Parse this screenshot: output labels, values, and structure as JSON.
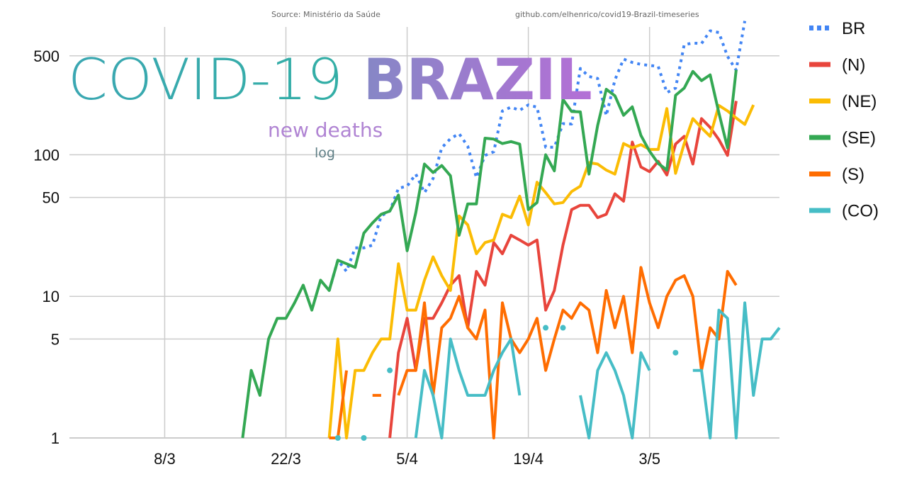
{
  "header": {
    "source": "Source: Ministério da Saúde",
    "repo": "github.com/elhenrico/covid19-Brazil-timeseries"
  },
  "title": {
    "part1": "COVID-19",
    "part2": "BRAZIL",
    "subtitle": "new deaths",
    "scale_note": "log"
  },
  "colors": {
    "title_gradient_start": "#3ba7b2",
    "title_gradient_mid": "#2bb59a",
    "title_bold_start": "#4aa6b1",
    "title_bold_end": "#b46fd6",
    "grid": "#cccccc"
  },
  "chart_data": {
    "type": "line",
    "yscale": "log",
    "ylim": [
      1,
      800
    ],
    "yticks": [
      1,
      5,
      10,
      50,
      100,
      500
    ],
    "ytick_labels": [
      "1",
      "5",
      "10",
      "50",
      "100",
      "500"
    ],
    "x_start": "2020-02-26",
    "x_end": "2020-05-18",
    "xticks": [
      "2020-03-08",
      "2020-03-22",
      "2020-04-05",
      "2020-04-19",
      "2020-05-03"
    ],
    "xtick_labels": [
      "8/3",
      "22/3",
      "5/4",
      "19/4",
      "3/5"
    ],
    "grid": true,
    "legend_position": "right",
    "series": [
      {
        "name": "BR",
        "color": "#4285f4",
        "dash": true,
        "start": "2020-03-27",
        "values": [
          11,
          18,
          15,
          22,
          22,
          23,
          37,
          40,
          58,
          60,
          73,
          54,
          68,
          112,
          130,
          141,
          115,
          69,
          99,
          105,
          204,
          217,
          206,
          225,
          217,
          113,
          113,
          166,
          165,
          407,
          357,
          346,
          189,
          338,
          474,
          449,
          435,
          428,
          421,
          275,
          296,
          600,
          615,
          610,
          751,
          730,
          496,
          396,
          881
        ]
      },
      {
        "name": "(N)",
        "color": "#e8453c",
        "dash": false,
        "start": "2020-04-03",
        "values": [
          1,
          4,
          7,
          3,
          7,
          7,
          9,
          12,
          14,
          6,
          15,
          12,
          24,
          20,
          27,
          25,
          23,
          25,
          8,
          11,
          23,
          41,
          44,
          44,
          36,
          38,
          53,
          47,
          123,
          82,
          76,
          90,
          72,
          119,
          135,
          86,
          180,
          156,
          128,
          99,
          240
        ]
      },
      {
        "name": "(NE)",
        "color": "#fbbc04",
        "dash": false,
        "start": "2020-03-27",
        "values": [
          1,
          5,
          1,
          3,
          3,
          4,
          5,
          5,
          17,
          8,
          8,
          13,
          19,
          14,
          11,
          37,
          32,
          20,
          24,
          25,
          38,
          36,
          51,
          32,
          64,
          54,
          45,
          46,
          55,
          60,
          88,
          86,
          78,
          73,
          120,
          112,
          118,
          109,
          109,
          212,
          74,
          120,
          180,
          155,
          135,
          223,
          204,
          182,
          164,
          225
        ]
      },
      {
        "name": "(SE)",
        "color": "#34a853",
        "dash": false,
        "start": "2020-03-17",
        "values": [
          1,
          3,
          2,
          5,
          7,
          7,
          9,
          12,
          8,
          13,
          11,
          18,
          17,
          16,
          28,
          33,
          38,
          40,
          52,
          21,
          39,
          86,
          75,
          84,
          71,
          27,
          45,
          45,
          131,
          129,
          120,
          124,
          119,
          41,
          46,
          100,
          77,
          246,
          202,
          201,
          73,
          161,
          290,
          261,
          190,
          218,
          137,
          106,
          87,
          78,
          263,
          296,
          388,
          334,
          367,
          198,
          112,
          398
        ]
      },
      {
        "name": "(S)",
        "color": "#ff6d01",
        "dash": false,
        "start": "2020-03-27",
        "values": [
          1,
          1,
          3,
          null,
          null,
          2,
          2,
          null,
          2,
          3,
          3,
          9,
          2,
          6,
          7,
          10,
          6,
          5,
          8,
          1,
          9,
          5,
          4,
          5,
          7,
          3,
          5,
          8,
          7,
          9,
          8,
          4,
          11,
          6,
          10,
          4,
          16,
          9,
          6,
          10,
          13,
          14,
          10,
          3,
          6,
          5,
          15,
          12
        ]
      },
      {
        "name": "(CO)",
        "color": "#46bdc6",
        "dash": false,
        "start": "2020-03-28",
        "values": [
          1,
          null,
          null,
          1,
          null,
          null,
          3,
          null,
          null,
          1,
          3,
          2,
          1,
          5,
          3,
          2,
          2,
          2,
          3,
          4,
          5,
          2,
          null,
          null,
          6,
          null,
          6,
          null,
          2,
          1,
          3,
          4,
          3,
          2,
          1,
          4,
          3,
          null,
          null,
          4,
          null,
          3,
          3,
          1,
          8,
          7,
          1,
          9,
          2,
          5,
          5,
          6
        ]
      }
    ]
  }
}
